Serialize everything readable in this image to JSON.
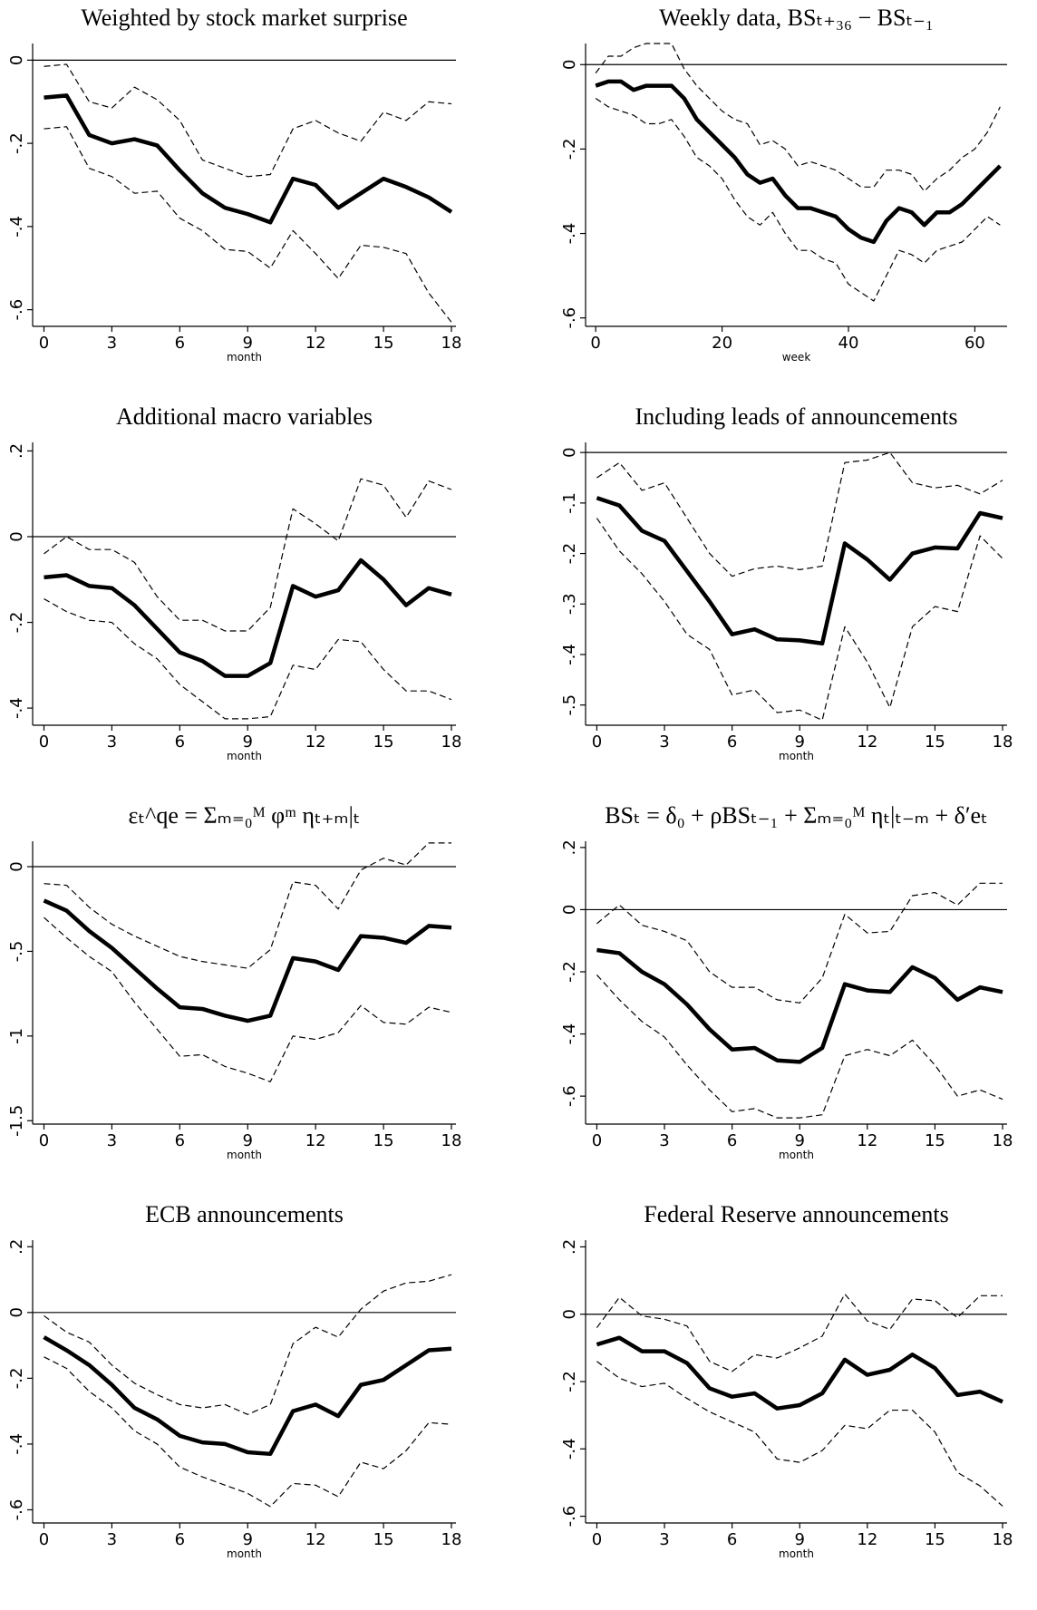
{
  "chart_data": [
    {
      "type": "line",
      "title": "Weighted by stock market surprise",
      "x_label": "month",
      "x": [
        0,
        1,
        2,
        3,
        4,
        5,
        6,
        7,
        8,
        9,
        10,
        11,
        12,
        13,
        14,
        15,
        16,
        17,
        18
      ],
      "xlim": [
        -0.5,
        18.2
      ],
      "xticks": [
        0,
        3,
        6,
        9,
        12,
        15,
        18
      ],
      "ylim": [
        -0.64,
        0.04
      ],
      "yticks": [
        0,
        {
          "value": -0.2,
          "label": "-.2"
        },
        {
          "value": -0.4,
          "label": "-.4"
        },
        {
          "value": -0.6,
          "label": "-.6"
        }
      ],
      "reference_line": 0,
      "series": [
        {
          "color": "#000000",
          "style": "solid",
          "values": [
            -0.09,
            -0.085,
            -0.18,
            -0.2,
            -0.19,
            -0.205,
            -0.265,
            -0.32,
            -0.355,
            -0.37,
            -0.39,
            -0.285,
            -0.3,
            -0.355,
            -0.32,
            -0.285,
            -0.305,
            -0.33,
            -0.365
          ]
        },
        {
          "color": "#000000",
          "style": "dashed",
          "values": [
            -0.015,
            -0.01,
            -0.1,
            -0.115,
            -0.065,
            -0.095,
            -0.145,
            -0.24,
            -0.26,
            -0.28,
            -0.275,
            -0.165,
            -0.145,
            -0.175,
            -0.195,
            -0.125,
            -0.145,
            -0.1,
            -0.105
          ]
        },
        {
          "color": "#000000",
          "style": "dashed",
          "values": [
            -0.165,
            -0.16,
            -0.26,
            -0.28,
            -0.32,
            -0.315,
            -0.38,
            -0.41,
            -0.455,
            -0.46,
            -0.5,
            -0.41,
            -0.465,
            -0.525,
            -0.445,
            -0.45,
            -0.465,
            -0.56,
            -0.63
          ]
        }
      ]
    },
    {
      "type": "line",
      "title": "Weekly data, BSₜ₊₃₆ − BSₜ₋₁",
      "x_label": "week",
      "x": [
        0,
        2,
        4,
        6,
        8,
        10,
        12,
        14,
        16,
        18,
        20,
        22,
        24,
        26,
        28,
        30,
        32,
        34,
        36,
        38,
        40,
        42,
        44,
        46,
        48,
        50,
        52,
        54,
        56,
        58,
        60,
        62,
        64
      ],
      "xlim": [
        -1.6,
        65.1
      ],
      "xticks": [
        0,
        20,
        40,
        60
      ],
      "ylim": [
        -0.62,
        0.05
      ],
      "yticks": [
        0,
        {
          "value": -0.2,
          "label": "-.2"
        },
        {
          "value": -0.4,
          "label": "-.4"
        },
        {
          "value": -0.6,
          "label": "-.6"
        }
      ],
      "reference_line": 0,
      "series": [
        {
          "color": "#000000",
          "style": "solid",
          "values": [
            -0.05,
            -0.04,
            -0.04,
            -0.06,
            -0.05,
            -0.05,
            -0.05,
            -0.08,
            -0.13,
            -0.16,
            -0.19,
            -0.22,
            -0.26,
            -0.28,
            -0.27,
            -0.31,
            -0.34,
            -0.34,
            -0.35,
            -0.36,
            -0.39,
            -0.41,
            -0.42,
            -0.37,
            -0.34,
            -0.35,
            -0.38,
            -0.35,
            -0.35,
            -0.33,
            -0.3,
            -0.27,
            -0.24
          ]
        },
        {
          "color": "#000000",
          "style": "dashed",
          "values": [
            -0.02,
            0.02,
            0.02,
            0.04,
            0.05,
            0.05,
            0.05,
            -0.01,
            -0.05,
            -0.08,
            -0.11,
            -0.13,
            -0.14,
            -0.19,
            -0.18,
            -0.2,
            -0.24,
            -0.23,
            -0.24,
            -0.25,
            -0.27,
            -0.29,
            -0.29,
            -0.25,
            -0.25,
            -0.26,
            -0.3,
            -0.27,
            -0.25,
            -0.22,
            -0.2,
            -0.16,
            -0.1
          ]
        },
        {
          "color": "#000000",
          "style": "dashed",
          "values": [
            -0.08,
            -0.1,
            -0.11,
            -0.12,
            -0.14,
            -0.14,
            -0.13,
            -0.17,
            -0.22,
            -0.24,
            -0.27,
            -0.32,
            -0.36,
            -0.38,
            -0.35,
            -0.4,
            -0.44,
            -0.44,
            -0.46,
            -0.47,
            -0.52,
            -0.54,
            -0.56,
            -0.5,
            -0.44,
            -0.45,
            -0.47,
            -0.44,
            -0.43,
            -0.42,
            -0.39,
            -0.36,
            -0.38
          ]
        }
      ]
    },
    {
      "type": "line",
      "title": "Additional macro variables",
      "x_label": "month",
      "x": [
        0,
        1,
        2,
        3,
        4,
        5,
        6,
        7,
        8,
        9,
        10,
        11,
        12,
        13,
        14,
        15,
        16,
        17,
        18
      ],
      "xlim": [
        -0.5,
        18.2
      ],
      "xticks": [
        0,
        3,
        6,
        9,
        12,
        15,
        18
      ],
      "ylim": [
        -0.44,
        0.22
      ],
      "yticks": [
        {
          "value": 0.2,
          "label": ".2"
        },
        0,
        {
          "value": -0.2,
          "label": "-.2"
        },
        {
          "value": -0.4,
          "label": "-.4"
        }
      ],
      "reference_line": 0,
      "series": [
        {
          "color": "#000000",
          "style": "solid",
          "values": [
            -0.095,
            -0.09,
            -0.115,
            -0.12,
            -0.16,
            -0.215,
            -0.27,
            -0.29,
            -0.325,
            -0.325,
            -0.295,
            -0.115,
            -0.14,
            -0.125,
            -0.055,
            -0.1,
            -0.16,
            -0.12,
            -0.135
          ]
        },
        {
          "color": "#000000",
          "style": "dashed",
          "values": [
            -0.04,
            0,
            -0.03,
            -0.03,
            -0.06,
            -0.14,
            -0.195,
            -0.195,
            -0.22,
            -0.22,
            -0.165,
            0.065,
            0.03,
            -0.01,
            0.135,
            0.12,
            0.045,
            0.13,
            0.11
          ]
        },
        {
          "color": "#000000",
          "style": "dashed",
          "values": [
            -0.145,
            -0.175,
            -0.195,
            -0.2,
            -0.25,
            -0.285,
            -0.345,
            -0.385,
            -0.425,
            -0.425,
            -0.42,
            -0.3,
            -0.31,
            -0.24,
            -0.245,
            -0.31,
            -0.36,
            -0.36,
            -0.38
          ]
        }
      ]
    },
    {
      "type": "line",
      "title": "Including leads of announcements",
      "x_label": "month",
      "x": [
        0,
        1,
        2,
        3,
        4,
        5,
        6,
        7,
        8,
        9,
        10,
        11,
        12,
        13,
        14,
        15,
        16,
        17,
        18
      ],
      "xlim": [
        -0.5,
        18.2
      ],
      "xticks": [
        0,
        3,
        6,
        9,
        12,
        15,
        18
      ],
      "ylim": [
        -0.54,
        0.02
      ],
      "yticks": [
        0,
        {
          "value": -0.1,
          "label": "-.1"
        },
        {
          "value": -0.2,
          "label": "-.2"
        },
        {
          "value": -0.3,
          "label": "-.3"
        },
        {
          "value": -0.4,
          "label": "-.4"
        },
        {
          "value": -0.5,
          "label": "-.5"
        }
      ],
      "reference_line": 0,
      "series": [
        {
          "color": "#000000",
          "style": "solid",
          "values": [
            -0.09,
            -0.105,
            -0.155,
            -0.175,
            -0.235,
            -0.295,
            -0.36,
            -0.35,
            -0.37,
            -0.372,
            -0.378,
            -0.18,
            -0.212,
            -0.252,
            -0.2,
            -0.188,
            -0.19,
            -0.12,
            -0.13
          ]
        },
        {
          "color": "#000000",
          "style": "dashed",
          "values": [
            -0.05,
            -0.02,
            -0.075,
            -0.06,
            -0.13,
            -0.2,
            -0.245,
            -0.23,
            -0.225,
            -0.232,
            -0.225,
            -0.02,
            -0.015,
            0,
            -0.06,
            -0.07,
            -0.065,
            -0.082,
            -0.055
          ]
        },
        {
          "color": "#000000",
          "style": "dashed",
          "values": [
            -0.13,
            -0.195,
            -0.24,
            -0.295,
            -0.36,
            -0.39,
            -0.48,
            -0.47,
            -0.515,
            -0.51,
            -0.53,
            -0.345,
            -0.415,
            -0.505,
            -0.345,
            -0.305,
            -0.315,
            -0.165,
            -0.21
          ]
        }
      ]
    },
    {
      "type": "line",
      "title": "εₜ^qe = Σₘ₌₀ᴹ φᵐ ηₜ₊ₘ|ₜ",
      "x_label": "month",
      "x": [
        0,
        1,
        2,
        3,
        4,
        5,
        6,
        7,
        8,
        9,
        10,
        11,
        12,
        13,
        14,
        15,
        16,
        17,
        18
      ],
      "xlim": [
        -0.5,
        18.2
      ],
      "xticks": [
        0,
        3,
        6,
        9,
        12,
        15,
        18
      ],
      "ylim": [
        -1.52,
        0.15
      ],
      "yticks": [
        0,
        {
          "value": -0.5,
          "label": "-.5"
        },
        -1,
        {
          "value": -1.5,
          "label": "-1.5"
        }
      ],
      "reference_line": 0,
      "series": [
        {
          "color": "#000000",
          "style": "solid",
          "values": [
            -0.2,
            -0.26,
            -0.38,
            -0.48,
            -0.6,
            -0.72,
            -0.83,
            -0.84,
            -0.88,
            -0.91,
            -0.88,
            -0.54,
            -0.56,
            -0.61,
            -0.41,
            -0.42,
            -0.45,
            -0.35,
            -0.36
          ]
        },
        {
          "color": "#000000",
          "style": "dashed",
          "values": [
            -0.1,
            -0.11,
            -0.24,
            -0.34,
            -0.41,
            -0.47,
            -0.53,
            -0.56,
            -0.58,
            -0.6,
            -0.49,
            -0.09,
            -0.11,
            -0.25,
            -0.02,
            0.05,
            0.01,
            0.14,
            0.14
          ]
        },
        {
          "color": "#000000",
          "style": "dashed",
          "values": [
            -0.3,
            -0.42,
            -0.53,
            -0.62,
            -0.8,
            -0.96,
            -1.12,
            -1.11,
            -1.18,
            -1.22,
            -1.27,
            -1.0,
            -1.02,
            -0.98,
            -0.82,
            -0.92,
            -0.93,
            -0.83,
            -0.86
          ]
        }
      ]
    },
    {
      "type": "line",
      "title": "BSₜ = δ₀ + ρBSₜ₋₁ + Σₘ₌₀ᴹ ηₜ|ₜ₋ₘ + δ′eₜ",
      "x_label": "month",
      "x": [
        0,
        1,
        2,
        3,
        4,
        5,
        6,
        7,
        8,
        9,
        10,
        11,
        12,
        13,
        14,
        15,
        16,
        17,
        18
      ],
      "xlim": [
        -0.5,
        18.2
      ],
      "xticks": [
        0,
        3,
        6,
        9,
        12,
        15,
        18
      ],
      "ylim": [
        -0.69,
        0.22
      ],
      "yticks": [
        {
          "value": 0.2,
          "label": ".2"
        },
        0,
        {
          "value": -0.2,
          "label": "-.2"
        },
        {
          "value": -0.4,
          "label": "-.4"
        },
        {
          "value": -0.6,
          "label": "-.6"
        }
      ],
      "reference_line": 0,
      "series": [
        {
          "color": "#000000",
          "style": "solid",
          "values": [
            -0.13,
            -0.14,
            -0.2,
            -0.24,
            -0.305,
            -0.385,
            -0.45,
            -0.445,
            -0.485,
            -0.49,
            -0.445,
            -0.24,
            -0.26,
            -0.265,
            -0.185,
            -0.22,
            -0.29,
            -0.25,
            -0.265
          ]
        },
        {
          "color": "#000000",
          "style": "dashed",
          "values": [
            -0.045,
            0.015,
            -0.05,
            -0.07,
            -0.1,
            -0.2,
            -0.25,
            -0.25,
            -0.29,
            -0.3,
            -0.22,
            -0.015,
            -0.075,
            -0.07,
            0.045,
            0.055,
            0.015,
            0.085,
            0.085
          ]
        },
        {
          "color": "#000000",
          "style": "dashed",
          "values": [
            -0.21,
            -0.29,
            -0.36,
            -0.41,
            -0.5,
            -0.58,
            -0.65,
            -0.64,
            -0.67,
            -0.67,
            -0.66,
            -0.47,
            -0.45,
            -0.47,
            -0.42,
            -0.5,
            -0.6,
            -0.58,
            -0.61
          ]
        }
      ]
    },
    {
      "type": "line",
      "title": "ECB announcements",
      "x_label": "month",
      "x": [
        0,
        1,
        2,
        3,
        4,
        5,
        6,
        7,
        8,
        9,
        10,
        11,
        12,
        13,
        14,
        15,
        16,
        17,
        18
      ],
      "xlim": [
        -0.5,
        18.2
      ],
      "xticks": [
        0,
        3,
        6,
        9,
        12,
        15,
        18
      ],
      "ylim": [
        -0.64,
        0.22
      ],
      "yticks": [
        {
          "value": 0.2,
          "label": ".2"
        },
        0,
        {
          "value": -0.2,
          "label": "-.2"
        },
        {
          "value": -0.4,
          "label": "-.4"
        },
        {
          "value": -0.6,
          "label": "-.6"
        }
      ],
      "reference_line": 0,
      "series": [
        {
          "color": "#000000",
          "style": "solid",
          "values": [
            -0.075,
            -0.115,
            -0.16,
            -0.22,
            -0.29,
            -0.325,
            -0.375,
            -0.395,
            -0.4,
            -0.425,
            -0.43,
            -0.3,
            -0.28,
            -0.315,
            -0.22,
            -0.205,
            -0.16,
            -0.115,
            -0.11
          ]
        },
        {
          "color": "#000000",
          "style": "dashed",
          "values": [
            -0.01,
            -0.06,
            -0.09,
            -0.16,
            -0.215,
            -0.25,
            -0.28,
            -0.29,
            -0.28,
            -0.31,
            -0.28,
            -0.095,
            -0.045,
            -0.075,
            0.01,
            0.065,
            0.09,
            0.095,
            0.115
          ]
        },
        {
          "color": "#000000",
          "style": "dashed",
          "values": [
            -0.135,
            -0.17,
            -0.24,
            -0.29,
            -0.36,
            -0.4,
            -0.47,
            -0.5,
            -0.525,
            -0.55,
            -0.59,
            -0.52,
            -0.525,
            -0.56,
            -0.455,
            -0.475,
            -0.42,
            -0.335,
            -0.34
          ]
        }
      ]
    },
    {
      "type": "line",
      "title": "Federal Reserve announcements",
      "x_label": "month",
      "x": [
        0,
        1,
        2,
        3,
        4,
        5,
        6,
        7,
        8,
        9,
        10,
        11,
        12,
        13,
        14,
        15,
        16,
        17,
        18
      ],
      "xlim": [
        -0.5,
        18.2
      ],
      "xticks": [
        0,
        3,
        6,
        9,
        12,
        15,
        18
      ],
      "ylim": [
        -0.62,
        0.22
      ],
      "yticks": [
        {
          "value": 0.2,
          "label": ".2"
        },
        0,
        {
          "value": -0.2,
          "label": "-.2"
        },
        {
          "value": -0.4,
          "label": "-.4"
        },
        {
          "value": -0.6,
          "label": "-.6"
        }
      ],
      "reference_line": 0,
      "series": [
        {
          "color": "#000000",
          "style": "solid",
          "values": [
            -0.09,
            -0.07,
            -0.11,
            -0.11,
            -0.145,
            -0.22,
            -0.245,
            -0.235,
            -0.28,
            -0.27,
            -0.235,
            -0.135,
            -0.18,
            -0.165,
            -0.12,
            -0.16,
            -0.24,
            -0.23,
            -0.26
          ]
        },
        {
          "color": "#000000",
          "style": "dashed",
          "values": [
            -0.04,
            0.05,
            -0.005,
            -0.015,
            -0.035,
            -0.14,
            -0.17,
            -0.12,
            -0.13,
            -0.1,
            -0.065,
            0.06,
            -0.02,
            -0.045,
            0.045,
            0.04,
            -0.01,
            0.055,
            0.055
          ]
        },
        {
          "color": "#000000",
          "style": "dashed",
          "values": [
            -0.14,
            -0.19,
            -0.215,
            -0.205,
            -0.25,
            -0.29,
            -0.32,
            -0.35,
            -0.43,
            -0.44,
            -0.405,
            -0.33,
            -0.34,
            -0.285,
            -0.285,
            -0.35,
            -0.47,
            -0.51,
            -0.57
          ]
        }
      ]
    }
  ]
}
